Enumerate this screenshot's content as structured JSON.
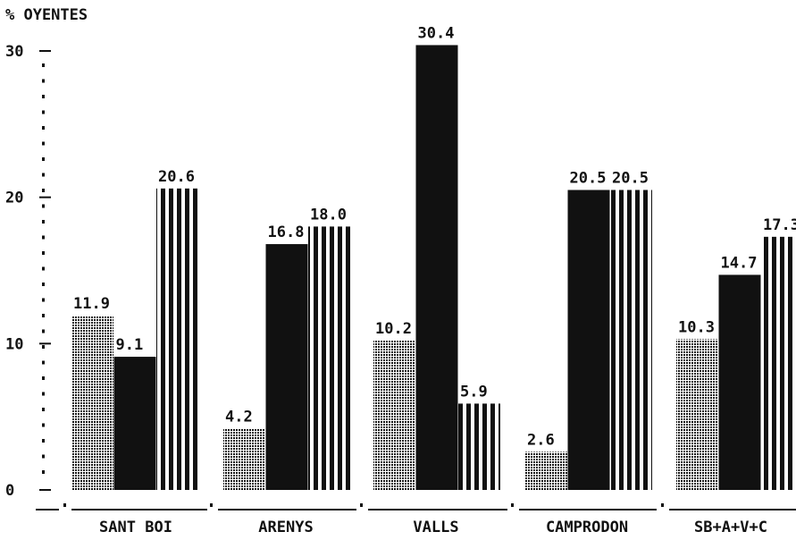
{
  "chart_data": {
    "type": "bar",
    "ylabel": "% OYENTES",
    "ylim": [
      0,
      30
    ],
    "yticks": [
      0,
      10,
      20,
      30
    ],
    "grid": false,
    "categories": [
      "SANT BOI",
      "ARENYS",
      "VALLS",
      "CAMPRODON",
      "SB+A+V+C"
    ],
    "series": [
      {
        "values": [
          11.9,
          4.2,
          10.2,
          2.6,
          10.3
        ],
        "value_labels": [
          "11.9",
          "4.2",
          "10.2",
          "2.6",
          "10.3"
        ],
        "fill": "dotted"
      },
      {
        "values": [
          9.1,
          16.8,
          30.4,
          20.5,
          14.7
        ],
        "value_labels": [
          "9.1",
          "16.8",
          "30.4",
          "20.5",
          "14.7"
        ],
        "fill": "solid"
      },
      {
        "values": [
          20.6,
          18.0,
          5.9,
          20.5,
          17.3
        ],
        "value_labels": [
          "20.6",
          "18.0",
          "5.9",
          "20.5",
          "17.3"
        ],
        "fill": "vertical-stripes"
      }
    ],
    "colors": {
      "ink": "#111111",
      "background": "#ffffff"
    }
  }
}
